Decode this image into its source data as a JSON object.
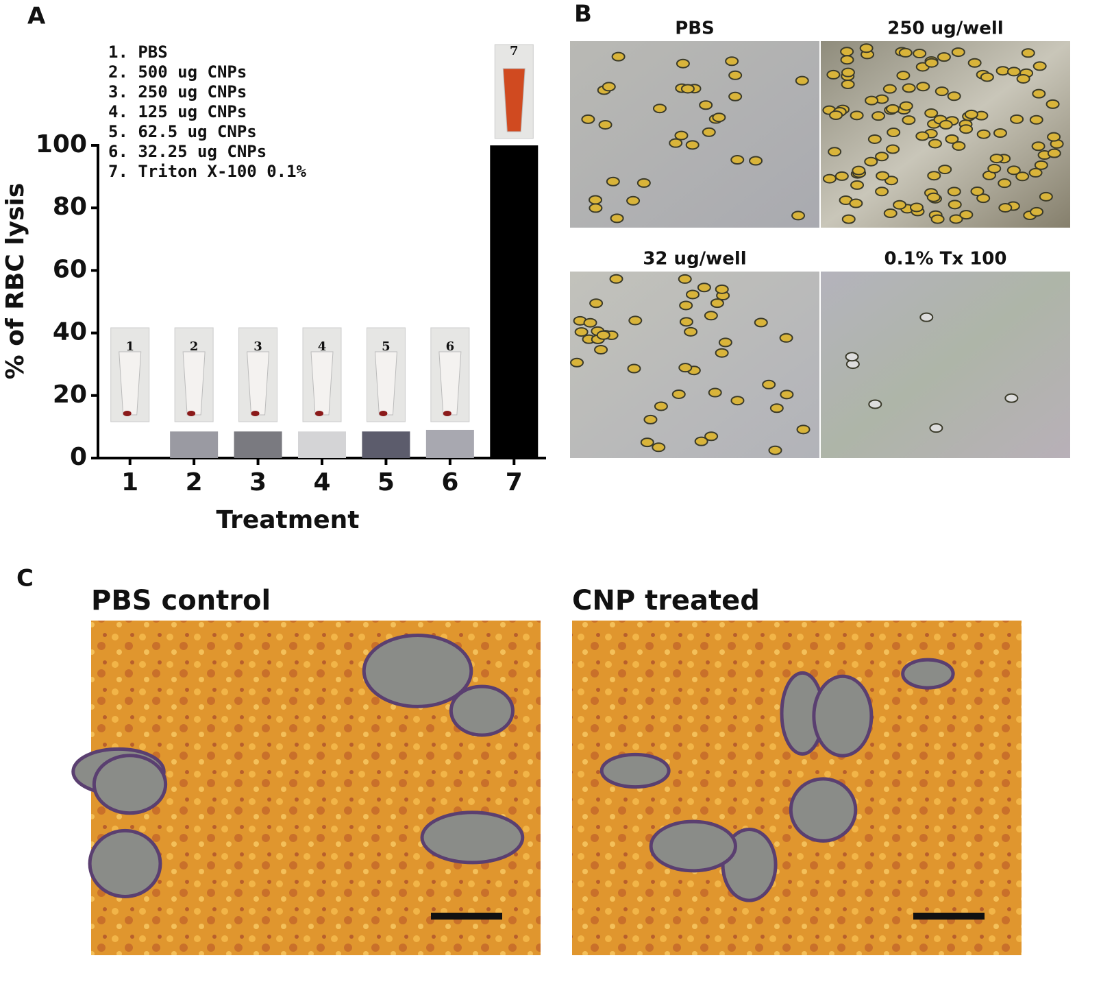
{
  "chart_data": {
    "type": "bar",
    "panel_label": "A",
    "legend_items": [
      "1. PBS",
      "2. 500 ug CNPs",
      "3. 250 ug CNPs",
      "4. 125 ug CNPs",
      "5. 62.5 ug CNPs",
      "6. 32.25 ug CNPs",
      "7. Triton X-100 0.1%"
    ],
    "categories": [
      "1",
      "2",
      "3",
      "4",
      "5",
      "6",
      "7"
    ],
    "values": [
      0,
      8.5,
      8.5,
      8.5,
      8.5,
      9,
      100
    ],
    "colors": [
      "#9a9aa2",
      "#9a9aa2",
      "#7a7a80",
      "#d4d4d6",
      "#5c5c6c",
      "#a8a8b0",
      "#000000"
    ],
    "xlabel": "Treatment",
    "ylabel": "% of RBC lysis",
    "ylim": [
      0,
      100
    ],
    "yticks": [
      0,
      20,
      40,
      60,
      80,
      100
    ]
  },
  "panel_b": {
    "label": "B",
    "images": [
      {
        "title": "PBS"
      },
      {
        "title": "250 ug/well"
      },
      {
        "title": "32 ug/well"
      },
      {
        "title": "0.1% Tx 100"
      }
    ]
  },
  "panel_c": {
    "label": "C",
    "images": [
      {
        "title": "PBS control"
      },
      {
        "title": "CNP treated"
      }
    ]
  }
}
